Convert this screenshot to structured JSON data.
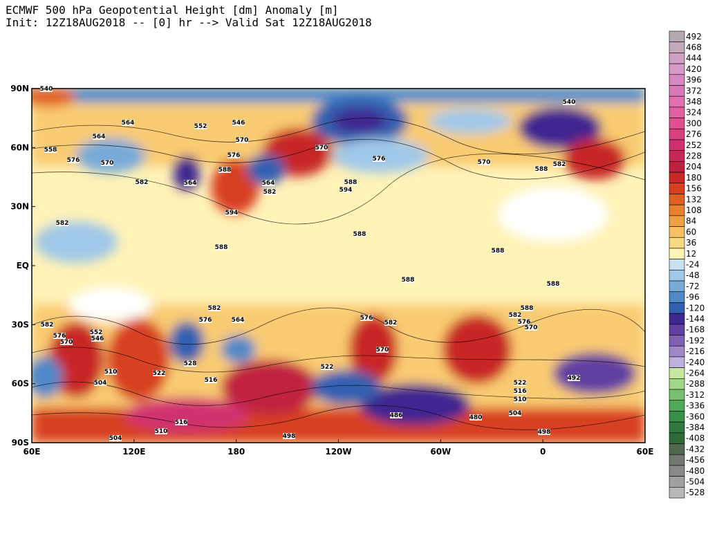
{
  "header": {
    "title": "ECMWF 500 hPa Geopotential Height [dm] Anomaly [m]",
    "init": "Init: 12Z18AUG2018 -- [0] hr --> Valid Sat 12Z18AUG2018"
  },
  "lat_labels": [
    "90N",
    "60N",
    "30N",
    "EQ",
    "30S",
    "60S",
    "90S"
  ],
  "lon_labels": [
    "60E",
    "120E",
    "180",
    "120W",
    "60W",
    "0",
    "60E"
  ],
  "colorbar": {
    "labels": [
      492,
      468,
      444,
      420,
      396,
      372,
      348,
      324,
      300,
      276,
      252,
      228,
      204,
      180,
      156,
      132,
      108,
      84,
      60,
      36,
      12,
      -24,
      -48,
      -72,
      -96,
      -120,
      -144,
      -168,
      -192,
      -216,
      -240,
      -264,
      -288,
      -312,
      -336,
      -360,
      -384,
      -408,
      -432,
      -456,
      -480,
      -504,
      -528
    ],
    "colors": [
      "#b4a8b0",
      "#c4a8bc",
      "#cfa0c4",
      "#d898c8",
      "#d888c0",
      "#d878b8",
      "#e070b0",
      "#e060a0",
      "#e05090",
      "#d84080",
      "#d03070",
      "#c82858",
      "#c02040",
      "#c82828",
      "#d84020",
      "#e06020",
      "#e88030",
      "#f0a040",
      "#f8c060",
      "#f8d880",
      "#fff3b8",
      "#c8e0f0",
      "#a0c8e8",
      "#78aad8",
      "#5088c8",
      "#3060b0",
      "#402890",
      "#6040a0",
      "#8060b0",
      "#a088c8",
      "#c0b0e0",
      "#c8e8a0",
      "#a0d888",
      "#78c070",
      "#50a858",
      "#389048",
      "#307840",
      "#306838",
      "#506850",
      "#707870",
      "#888888",
      "#a0a0a0",
      "#b8b8b8"
    ]
  },
  "contour_labels": [
    "540",
    "564",
    "552",
    "546",
    "570",
    "576",
    "588",
    "564",
    "564",
    "582",
    "594",
    "558",
    "576",
    "570",
    "564",
    "582",
    "582",
    "588",
    "588",
    "588",
    "588",
    "588",
    "582",
    "576",
    "564",
    "576",
    "582",
    "570",
    "522",
    "504",
    "510",
    "516",
    "522",
    "528",
    "486",
    "480",
    "492",
    "504",
    "510",
    "516",
    "522",
    "498",
    "498",
    "504",
    "510",
    "516",
    "582",
    "576",
    "570",
    "552",
    "546",
    "540",
    "588",
    "582",
    "570",
    "576",
    "570",
    "588",
    "594",
    "582",
    "588",
    "576",
    "570"
  ]
}
